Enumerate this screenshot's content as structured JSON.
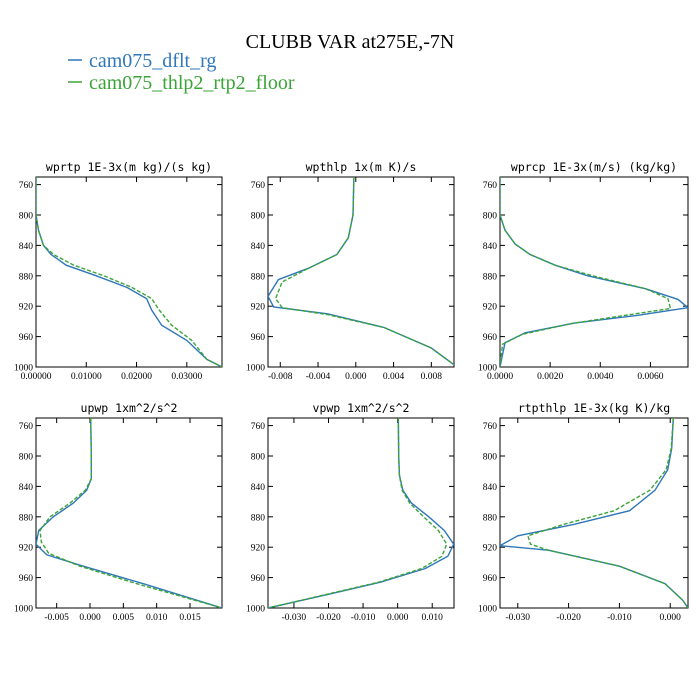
{
  "title": "CLUBB VAR at275E,-7N",
  "legend": [
    {
      "label": "cam075_dflt_rg",
      "color": "#2f77b9",
      "dash": "solid"
    },
    {
      "label": "cam075_thlp2_rtp2_floor",
      "color": "#3aa536",
      "dash": "dashed"
    }
  ],
  "chart_data": [
    {
      "type": "line",
      "title": "wprtp  1E-3x(m kg)/(s kg)",
      "xlim": [
        0,
        0.037
      ],
      "ylim": [
        1000,
        750
      ],
      "xticks": [
        0,
        0.01,
        0.02,
        0.03
      ],
      "xtick_labels": [
        "0.00000",
        "0.01000",
        "0.02000",
        "0.03000"
      ],
      "yticks": [
        760,
        800,
        840,
        880,
        920,
        960,
        1000
      ],
      "ytick_labels": [
        "760",
        "800",
        "840",
        "880",
        "920",
        "960",
        "1000"
      ],
      "series": [
        {
          "name": "cam075_dflt_rg",
          "x": [
            0,
            0,
            0.0005,
            0.0015,
            0.003,
            0.006,
            0.012,
            0.018,
            0.022,
            0.023,
            0.025,
            0.03,
            0.034,
            0.037
          ],
          "y": [
            750,
            800,
            820,
            840,
            852,
            866,
            880,
            895,
            910,
            925,
            945,
            965,
            990,
            1000
          ]
        },
        {
          "name": "cam075_thlp2_rtp2_floor",
          "x": [
            0,
            0,
            0.0005,
            0.0015,
            0.0035,
            0.0075,
            0.0135,
            0.019,
            0.023,
            0.0245,
            0.027,
            0.031,
            0.034,
            0.037
          ],
          "y": [
            750,
            800,
            820,
            840,
            852,
            866,
            880,
            895,
            910,
            925,
            945,
            965,
            990,
            1000
          ]
        }
      ]
    },
    {
      "type": "line",
      "title": "wpthlp  1x(m K)/s",
      "xlim": [
        -0.0093,
        0.0104
      ],
      "ylim": [
        1000,
        750
      ],
      "xticks": [
        -0.008,
        -0.004,
        0,
        0.004,
        0.008
      ],
      "xtick_labels": [
        "-0.008",
        "-0.004",
        "0.000",
        "0.004",
        "0.008"
      ],
      "yticks": [
        760,
        800,
        840,
        880,
        920,
        960,
        1000
      ],
      "ytick_labels": [
        "760",
        "800",
        "840",
        "880",
        "920",
        "960",
        "1000"
      ],
      "series": [
        {
          "name": "cam075_dflt_rg",
          "x": [
            -0.0002,
            -0.0003,
            -0.0008,
            -0.002,
            -0.005,
            -0.0082,
            -0.0093,
            -0.0087,
            -0.003,
            0.003,
            0.008,
            0.0104
          ],
          "y": [
            750,
            800,
            830,
            852,
            870,
            885,
            907,
            921,
            930,
            948,
            975,
            997
          ]
        },
        {
          "name": "cam075_thlp2_rtp2_floor",
          "x": [
            -0.0002,
            -0.0003,
            -0.0008,
            -0.002,
            -0.005,
            -0.0078,
            -0.0085,
            -0.0078,
            -0.003,
            0.003,
            0.008,
            0.0104
          ],
          "y": [
            750,
            800,
            830,
            852,
            870,
            888,
            910,
            922,
            931,
            948,
            975,
            997
          ]
        }
      ]
    },
    {
      "type": "line",
      "title": "wprcp  1E-3x(m/s) (kg/kg)",
      "xlim": [
        0,
        0.0075
      ],
      "ylim": [
        1000,
        750
      ],
      "xticks": [
        0,
        0.002,
        0.004,
        0.006
      ],
      "xtick_labels": [
        "0.0000",
        "0.0020",
        "0.0040",
        "0.0060"
      ],
      "yticks": [
        760,
        800,
        840,
        880,
        920,
        960,
        1000
      ],
      "ytick_labels": [
        "760",
        "800",
        "840",
        "880",
        "920",
        "960",
        "1000"
      ],
      "series": [
        {
          "name": "cam075_dflt_rg",
          "x": [
            0,
            0,
            0.0002,
            0.0006,
            0.0012,
            0.0022,
            0.0035,
            0.0058,
            0.0071,
            0.0075,
            0.0055,
            0.003,
            0.001,
            0.0002,
            0
          ],
          "y": [
            750,
            800,
            820,
            838,
            852,
            866,
            880,
            897,
            911,
            922,
            932,
            942,
            955,
            968,
            1000
          ]
        },
        {
          "name": "cam075_thlp2_rtp2_floor",
          "x": [
            0,
            0,
            0.0002,
            0.0006,
            0.0012,
            0.0022,
            0.0037,
            0.0058,
            0.0067,
            0.0068,
            0.005,
            0.0028,
            0.0009,
            0.0001,
            0
          ],
          "y": [
            750,
            800,
            820,
            838,
            852,
            866,
            880,
            897,
            910,
            923,
            932,
            943,
            957,
            970,
            1000
          ]
        }
      ]
    },
    {
      "type": "line",
      "title": "upwp  1xm^2/s^2",
      "xlim": [
        -0.0081,
        0.0198
      ],
      "ylim": [
        1000,
        750
      ],
      "xticks": [
        -0.005,
        0,
        0.005,
        0.01,
        0.015
      ],
      "xtick_labels": [
        "-0.005",
        "0.000",
        "0.005",
        "0.010",
        "0.015"
      ],
      "yticks": [
        760,
        800,
        840,
        880,
        920,
        960,
        1000
      ],
      "ytick_labels": [
        "760",
        "800",
        "840",
        "880",
        "920",
        "960",
        "1000"
      ],
      "series": [
        {
          "name": "cam075_dflt_rg",
          "x": [
            0.0001,
            0.0002,
            0.0002,
            -0.0005,
            -0.0025,
            -0.0055,
            -0.0077,
            -0.0081,
            -0.0065,
            -0.001,
            0.008,
            0.0198
          ],
          "y": [
            750,
            800,
            830,
            845,
            862,
            880,
            898,
            916,
            930,
            945,
            968,
            1000
          ]
        },
        {
          "name": "cam075_thlp2_rtp2_floor",
          "x": [
            0.0001,
            0.0002,
            0.0002,
            -0.0007,
            -0.003,
            -0.006,
            -0.0075,
            -0.0073,
            -0.0062,
            -0.0015,
            0.007,
            0.0198
          ],
          "y": [
            750,
            800,
            830,
            845,
            862,
            880,
            898,
            913,
            928,
            945,
            968,
            1000
          ]
        }
      ]
    },
    {
      "type": "line",
      "title": "vpwp  1xm^2/s^2",
      "xlim": [
        -0.0375,
        0.0163
      ],
      "ylim": [
        1000,
        750
      ],
      "xticks": [
        -0.03,
        -0.02,
        -0.01,
        0,
        0.01
      ],
      "xtick_labels": [
        "-0.030",
        "-0.020",
        "-0.010",
        "0.000",
        "0.010"
      ],
      "yticks": [
        760,
        800,
        840,
        880,
        920,
        960,
        1000
      ],
      "ytick_labels": [
        "760",
        "800",
        "840",
        "880",
        "920",
        "960",
        "1000"
      ],
      "series": [
        {
          "name": "cam075_dflt_rg",
          "x": [
            0.0002,
            0.0003,
            0.0005,
            0.0015,
            0.004,
            0.009,
            0.0135,
            0.0162,
            0.0145,
            0.008,
            -0.005,
            -0.02,
            -0.0375
          ],
          "y": [
            750,
            800,
            825,
            845,
            862,
            880,
            898,
            916,
            932,
            948,
            966,
            982,
            1000
          ]
        },
        {
          "name": "cam075_thlp2_rtp2_floor",
          "x": [
            0.0002,
            0.0003,
            0.0005,
            0.0013,
            0.0035,
            0.0075,
            0.0118,
            0.0142,
            0.0128,
            0.007,
            -0.0055,
            -0.0205,
            -0.0375
          ],
          "y": [
            750,
            800,
            825,
            845,
            862,
            880,
            898,
            916,
            932,
            948,
            966,
            982,
            1000
          ]
        }
      ]
    },
    {
      "type": "line",
      "title": "rtpthlp  1E-3x(kg K)/kg",
      "xlim": [
        -0.0335,
        0.0035
      ],
      "ylim": [
        1000,
        750
      ],
      "xticks": [
        -0.03,
        -0.02,
        -0.01,
        0
      ],
      "xtick_labels": [
        "-0.030",
        "-0.020",
        "-0.010",
        "0.000"
      ],
      "yticks": [
        760,
        800,
        840,
        880,
        920,
        960,
        1000
      ],
      "ytick_labels": [
        "760",
        "800",
        "840",
        "880",
        "920",
        "960",
        "1000"
      ],
      "series": [
        {
          "name": "cam075_dflt_rg",
          "x": [
            0.0006,
            0.0003,
            -0.0005,
            -0.003,
            -0.008,
            -0.019,
            -0.03,
            -0.0335,
            -0.024,
            -0.01,
            -0.001,
            0.0025,
            0.0035
          ],
          "y": [
            750,
            790,
            818,
            845,
            872,
            890,
            905,
            918,
            924,
            945,
            968,
            990,
            1000
          ]
        },
        {
          "name": "cam075_thlp2_rtp2_floor",
          "x": [
            0.0006,
            0.0002,
            -0.0008,
            -0.004,
            -0.011,
            -0.021,
            -0.028,
            -0.0275,
            -0.024,
            -0.01,
            -0.001,
            0.0025,
            0.0035
          ],
          "y": [
            750,
            790,
            818,
            845,
            872,
            890,
            905,
            916,
            924,
            945,
            968,
            990,
            1000
          ]
        }
      ]
    }
  ]
}
